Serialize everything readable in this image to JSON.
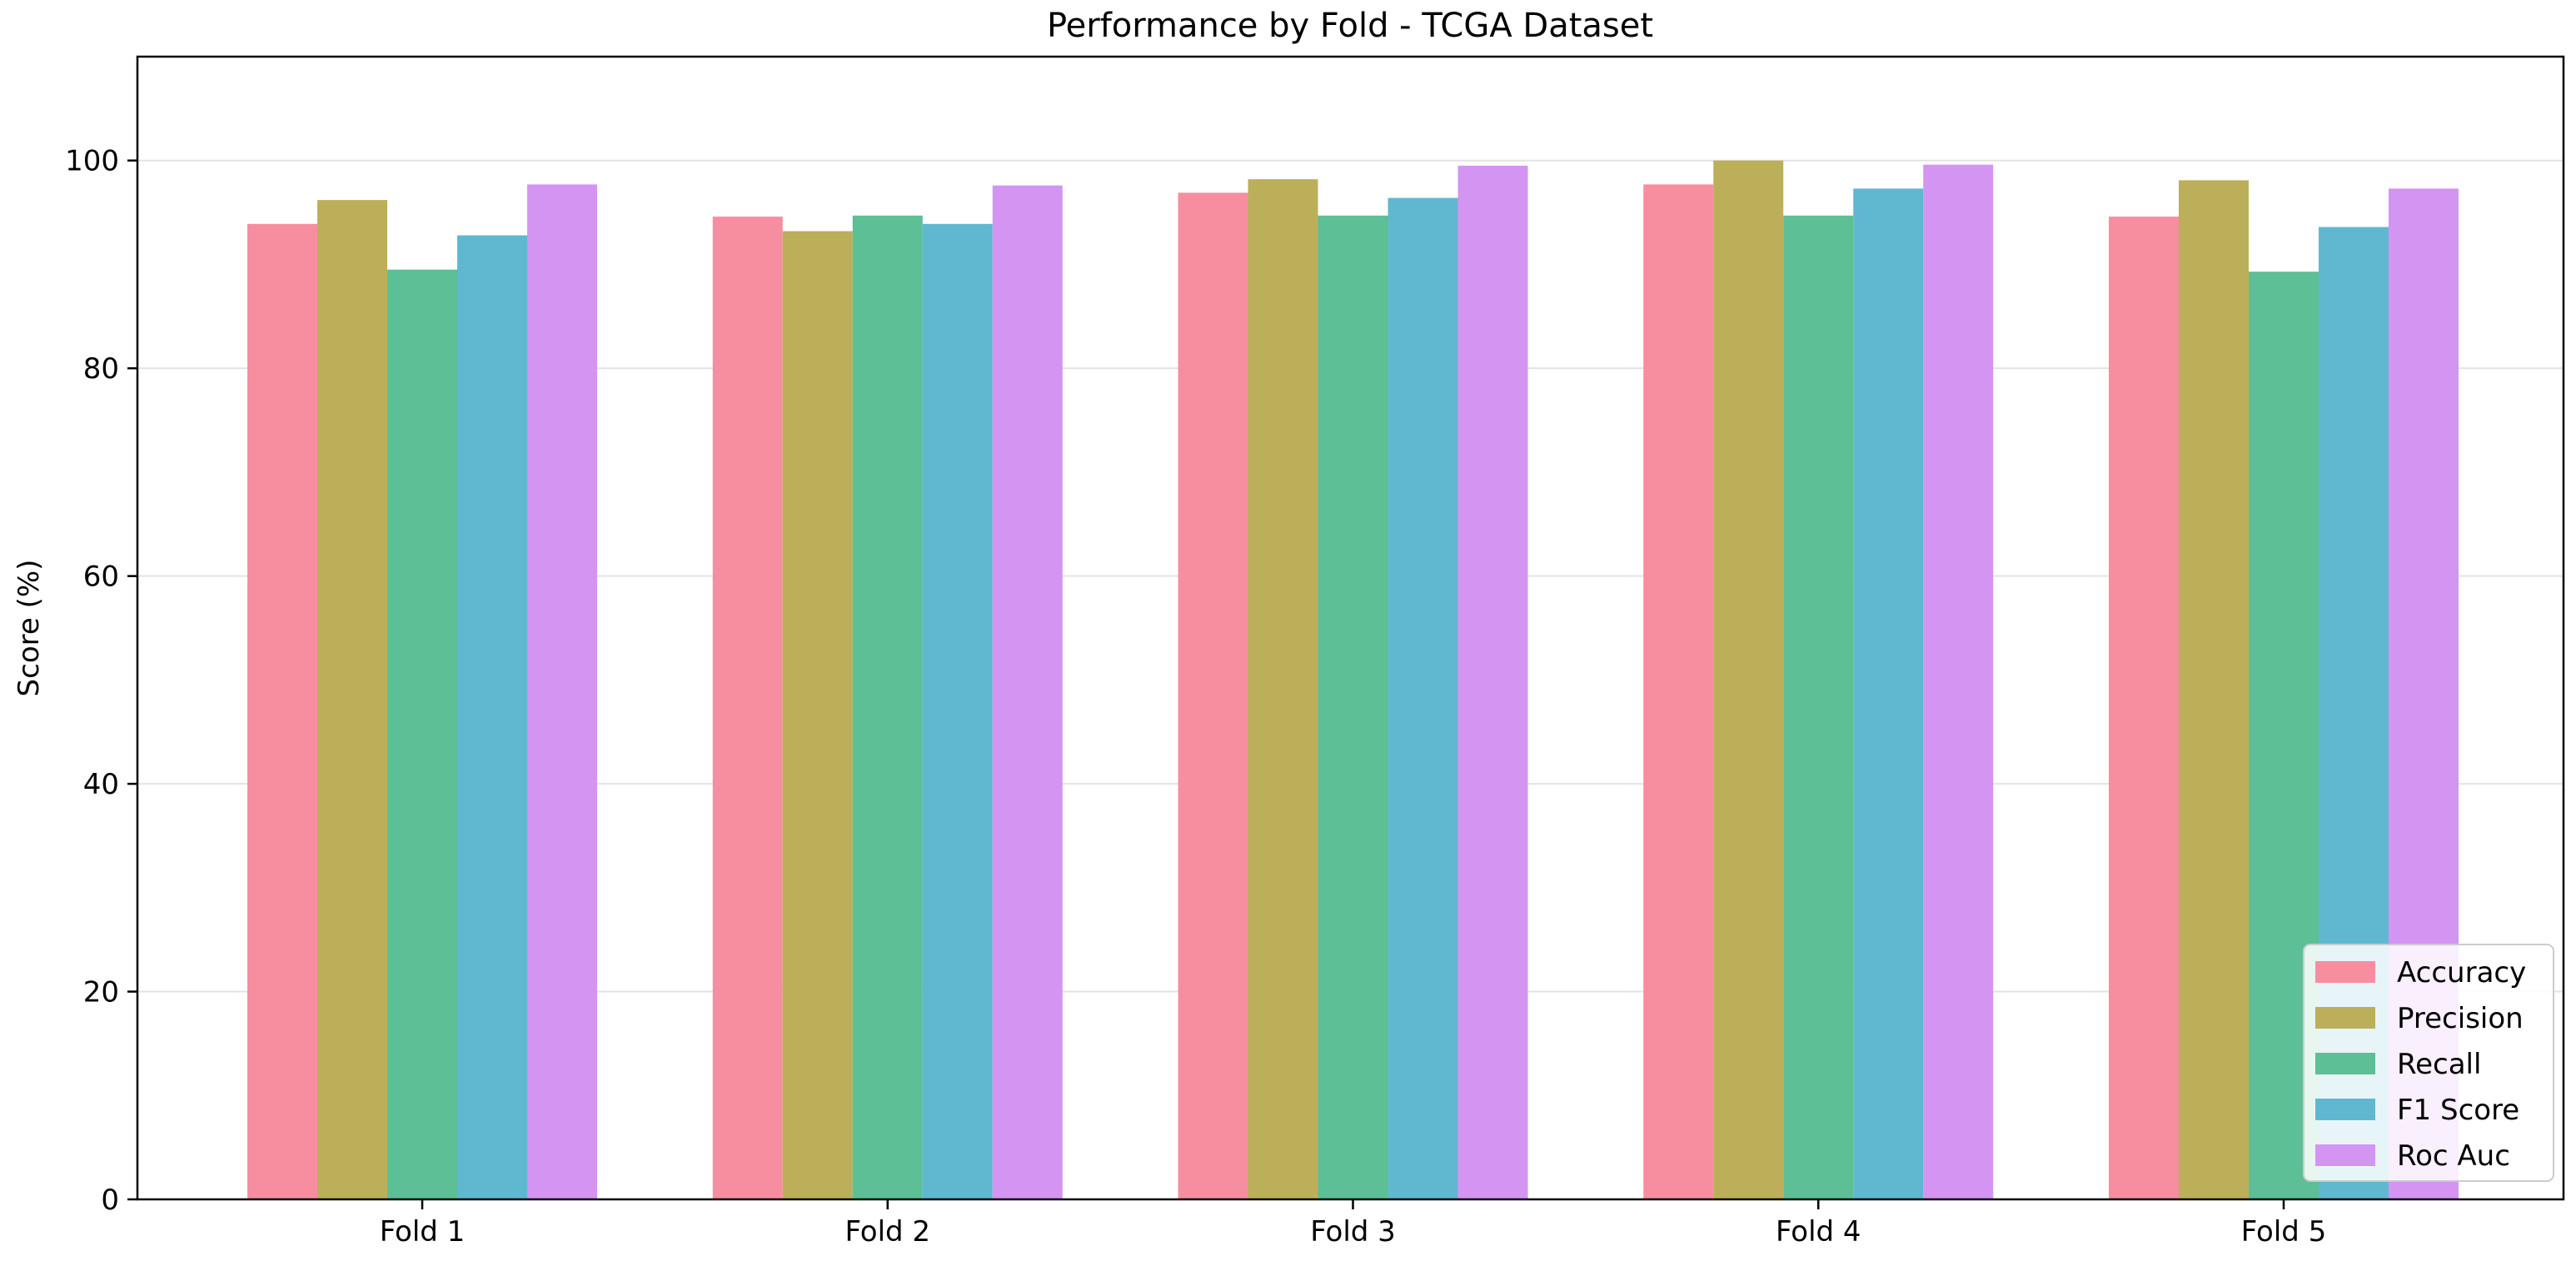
{
  "chart_data": {
    "type": "bar",
    "title": "Performance by Fold - TCGA Dataset",
    "xlabel": "",
    "ylabel": "Score (%)",
    "ylim": [
      0,
      110
    ],
    "yticks": [
      0,
      20,
      40,
      60,
      80,
      100
    ],
    "grid": "horizontal",
    "legend_position": "lower-right",
    "categories": [
      "Fold 1",
      "Fold 2",
      "Fold 3",
      "Fold 4",
      "Fold 5"
    ],
    "series": [
      {
        "name": "Accuracy",
        "color": "#f68ea0",
        "values": [
          93.9,
          94.6,
          96.9,
          97.7,
          94.6
        ]
      },
      {
        "name": "Precision",
        "color": "#bcaf59",
        "values": [
          96.2,
          93.2,
          98.2,
          100.0,
          98.1
        ]
      },
      {
        "name": "Recall",
        "color": "#5cbf96",
        "values": [
          89.5,
          94.7,
          94.7,
          94.7,
          89.3
        ]
      },
      {
        "name": "F1 Score",
        "color": "#60b8d0",
        "values": [
          92.8,
          93.9,
          96.4,
          97.3,
          93.6
        ]
      },
      {
        "name": "Roc Auc",
        "color": "#d494f2",
        "values": [
          97.7,
          97.6,
          99.5,
          99.6,
          97.3
        ]
      }
    ]
  }
}
